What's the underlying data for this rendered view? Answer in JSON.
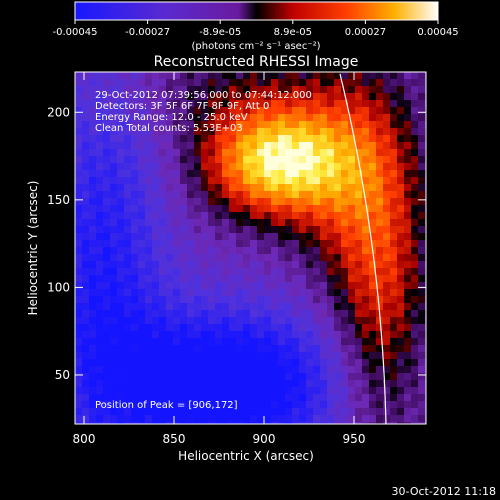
{
  "colorbar": {
    "tick_labels": [
      "-0.00045",
      "-0.00027",
      "-8.9e-05",
      "8.9e-05",
      "0.00027",
      "0.00045"
    ],
    "units_label": "(photons cm⁻² s⁻¹ asec⁻²)",
    "range": [
      -0.00045,
      0.00045
    ]
  },
  "chart_data": {
    "type": "heatmap",
    "title": "Reconstructed RHESSI Image",
    "xlabel": "Heliocentric X (arcsec)",
    "ylabel": "Heliocentric Y (arcsec)",
    "xlim": [
      795,
      990
    ],
    "ylim": [
      22,
      223
    ],
    "x_ticks": [
      800,
      850,
      900,
      950
    ],
    "y_ticks": [
      50,
      100,
      150,
      200
    ],
    "info_lines": [
      "29-Oct-2012 07:39:56.000 to 07:44:12.000",
      "Detectors: 3F 5F 6F 7F 8F 9F, Att 0",
      "Energy Range: 12.0 - 25.0 keV",
      "Clean     Total counts: 5.53E+03"
    ],
    "peak_label": "Position of Peak = [906,172]",
    "peak": {
      "x": 906,
      "y": 172
    },
    "solar_limb": {
      "center_x": 0,
      "center_y": 0,
      "radius": 968
    },
    "colors": {
      "limb": "#ffffff"
    }
  },
  "footer_timestamp": "30-Oct-2012 11:18"
}
